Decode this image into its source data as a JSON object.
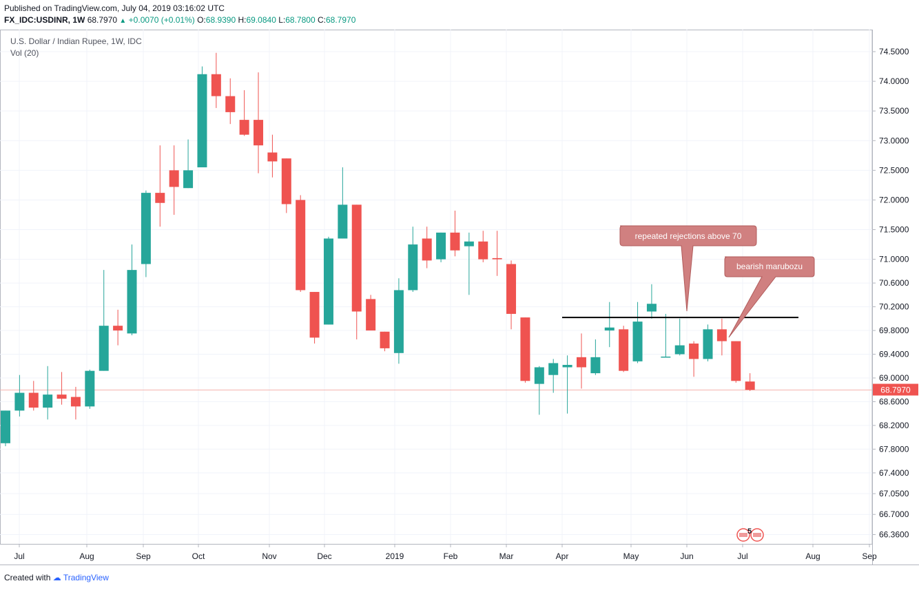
{
  "header": {
    "published": "Published on TradingView.com, July 04, 2019 03:16:02 UTC",
    "symbol": "FX_IDC:USDINR, 1W",
    "last": "68.7970",
    "change": "+0.0070 (+0.01%)",
    "o_label": "O:",
    "o": "68.9390",
    "h_label": "H:",
    "h": "69.0840",
    "l_label": "L:",
    "l": "68.7800",
    "c_label": "C:",
    "c": "68.7970"
  },
  "legend": {
    "title": "U.S. Dollar / Indian Rupee, 1W, IDC",
    "volume": "Vol (20)"
  },
  "footer": {
    "created_with": "Created with",
    "brand": "TradingView"
  },
  "colors": {
    "up": "#26a69a",
    "down": "#ef5350",
    "grid": "#f0f3fa",
    "callout": "#d08080"
  },
  "chart_data": {
    "type": "candlestick",
    "title": "U.S. Dollar / Indian Rupee, 1W, IDC",
    "ylim": [
      66.36,
      74.76
    ],
    "y_ticks": [
      "74.5000",
      "74.0000",
      "73.5000",
      "73.0000",
      "72.5000",
      "72.0000",
      "71.5000",
      "71.0000",
      "70.6000",
      "70.2000",
      "69.8000",
      "69.4000",
      "69.0000",
      "68.6000",
      "68.2000",
      "67.8000",
      "67.4000",
      "67.0500",
      "66.7000",
      "66.3600"
    ],
    "x_ticks": [
      "Jul",
      "Aug",
      "Sep",
      "Oct",
      "Nov",
      "Dec",
      "2019",
      "Feb",
      "Mar",
      "Apr",
      "May",
      "Jun",
      "Jul",
      "Aug",
      "Sep"
    ],
    "last_price_label": "68.7970",
    "candles": [
      {
        "o": 67.9,
        "h": 68.45,
        "l": 67.85,
        "c": 68.45
      },
      {
        "o": 68.45,
        "h": 69.05,
        "l": 68.35,
        "c": 68.75
      },
      {
        "o": 68.75,
        "h": 68.95,
        "l": 68.45,
        "c": 68.5
      },
      {
        "o": 68.5,
        "h": 69.2,
        "l": 68.3,
        "c": 68.72
      },
      {
        "o": 68.72,
        "h": 69.1,
        "l": 68.55,
        "c": 68.65
      },
      {
        "o": 68.68,
        "h": 68.85,
        "l": 68.3,
        "c": 68.52
      },
      {
        "o": 68.52,
        "h": 69.14,
        "l": 68.48,
        "c": 69.12
      },
      {
        "o": 69.12,
        "h": 70.82,
        "l": 69.12,
        "c": 69.88
      },
      {
        "o": 69.88,
        "h": 70.15,
        "l": 69.55,
        "c": 69.8
      },
      {
        "o": 69.75,
        "h": 71.25,
        "l": 69.72,
        "c": 70.82
      },
      {
        "o": 70.92,
        "h": 72.16,
        "l": 70.7,
        "c": 72.12
      },
      {
        "o": 72.12,
        "h": 72.92,
        "l": 71.55,
        "c": 71.95
      },
      {
        "o": 72.5,
        "h": 72.92,
        "l": 71.75,
        "c": 72.22
      },
      {
        "o": 72.2,
        "h": 73.02,
        "l": 72.2,
        "c": 72.5
      },
      {
        "o": 72.55,
        "h": 74.25,
        "l": 72.55,
        "c": 74.12
      },
      {
        "o": 74.12,
        "h": 74.48,
        "l": 73.55,
        "c": 73.75
      },
      {
        "o": 73.75,
        "h": 74.05,
        "l": 73.28,
        "c": 73.48
      },
      {
        "o": 73.35,
        "h": 73.85,
        "l": 73.08,
        "c": 73.1
      },
      {
        "o": 73.35,
        "h": 74.15,
        "l": 72.45,
        "c": 72.92
      },
      {
        "o": 72.8,
        "h": 73.1,
        "l": 72.38,
        "c": 72.65
      },
      {
        "o": 72.7,
        "h": 72.7,
        "l": 71.78,
        "c": 71.93
      },
      {
        "o": 72.0,
        "h": 72.08,
        "l": 70.45,
        "c": 70.48
      },
      {
        "o": 70.45,
        "h": 70.45,
        "l": 69.58,
        "c": 69.68
      },
      {
        "o": 69.9,
        "h": 71.38,
        "l": 69.9,
        "c": 71.35
      },
      {
        "o": 71.35,
        "h": 72.55,
        "l": 71.35,
        "c": 71.92
      },
      {
        "o": 71.92,
        "h": 71.92,
        "l": 69.65,
        "c": 70.12
      },
      {
        "o": 70.33,
        "h": 70.4,
        "l": 69.82,
        "c": 69.8
      },
      {
        "o": 69.78,
        "h": 69.78,
        "l": 69.45,
        "c": 69.5
      },
      {
        "o": 69.42,
        "h": 70.68,
        "l": 69.24,
        "c": 70.48
      },
      {
        "o": 70.48,
        "h": 71.55,
        "l": 70.45,
        "c": 71.25
      },
      {
        "o": 71.35,
        "h": 71.55,
        "l": 70.85,
        "c": 70.98
      },
      {
        "o": 71.0,
        "h": 71.45,
        "l": 70.95,
        "c": 71.45
      },
      {
        "o": 71.45,
        "h": 71.82,
        "l": 71.05,
        "c": 71.15
      },
      {
        "o": 71.22,
        "h": 71.45,
        "l": 70.4,
        "c": 71.3
      },
      {
        "o": 71.3,
        "h": 71.48,
        "l": 70.95,
        "c": 71.0
      },
      {
        "o": 71.02,
        "h": 71.48,
        "l": 70.72,
        "c": 71.0
      },
      {
        "o": 70.92,
        "h": 70.98,
        "l": 69.82,
        "c": 70.08
      },
      {
        "o": 70.02,
        "h": 70.02,
        "l": 68.92,
        "c": 68.95
      },
      {
        "o": 68.9,
        "h": 69.2,
        "l": 68.38,
        "c": 69.18
      },
      {
        "o": 69.05,
        "h": 69.32,
        "l": 68.75,
        "c": 69.25
      },
      {
        "o": 69.18,
        "h": 69.38,
        "l": 68.4,
        "c": 69.22
      },
      {
        "o": 69.35,
        "h": 69.75,
        "l": 68.82,
        "c": 69.18
      },
      {
        "o": 69.08,
        "h": 69.65,
        "l": 69.05,
        "c": 69.35
      },
      {
        "o": 69.8,
        "h": 70.28,
        "l": 69.52,
        "c": 69.85
      },
      {
        "o": 69.82,
        "h": 69.88,
        "l": 69.1,
        "c": 69.12
      },
      {
        "o": 69.28,
        "h": 70.28,
        "l": 69.25,
        "c": 69.95
      },
      {
        "o": 70.12,
        "h": 70.58,
        "l": 70.0,
        "c": 70.25
      },
      {
        "o": 69.35,
        "h": 70.08,
        "l": 69.35,
        "c": 69.36
      },
      {
        "o": 69.4,
        "h": 70.0,
        "l": 69.38,
        "c": 69.55
      },
      {
        "o": 69.58,
        "h": 69.62,
        "l": 69.02,
        "c": 69.32
      },
      {
        "o": 69.32,
        "h": 69.9,
        "l": 69.28,
        "c": 69.82
      },
      {
        "o": 69.82,
        "h": 70.0,
        "l": 69.38,
        "c": 69.62
      },
      {
        "o": 69.62,
        "h": 69.62,
        "l": 68.92,
        "c": 68.95
      },
      {
        "o": 68.94,
        "h": 69.08,
        "l": 68.78,
        "c": 68.8
      }
    ],
    "annotations": [
      {
        "text": "repeated rejections above 70"
      },
      {
        "text": "bearish marubozu"
      }
    ],
    "resistance_level": 70.02,
    "event_badge": "5"
  }
}
